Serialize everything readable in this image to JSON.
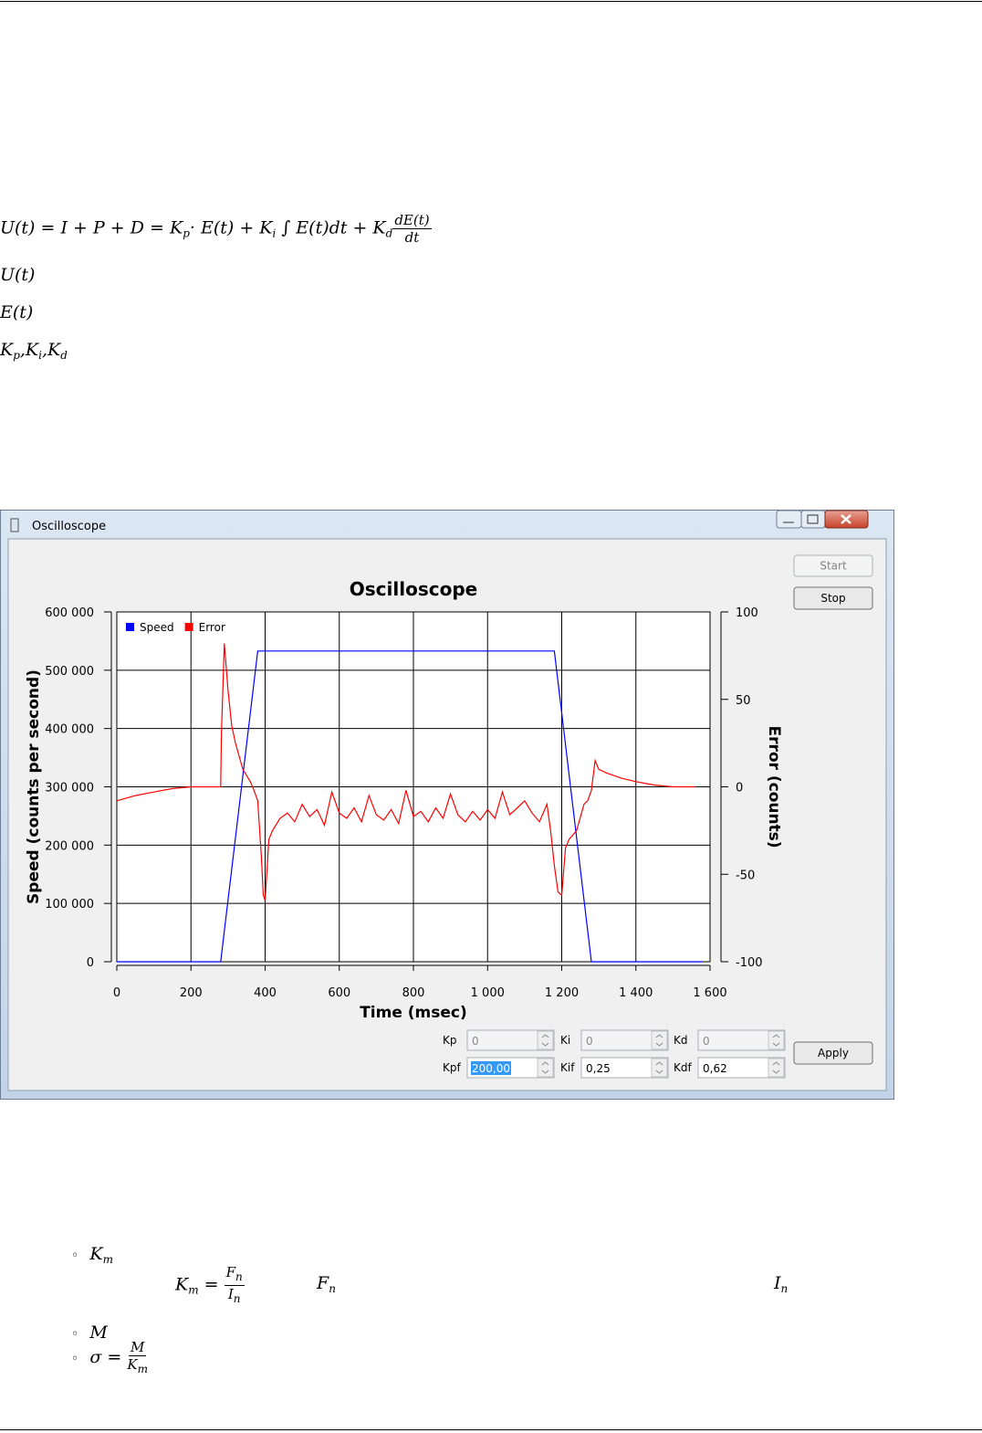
{
  "formulas": {
    "main": {
      "a": "U(t) = I + P + D = K",
      "p": "p",
      "b": "· E(t) + K",
      "i": "i",
      "c": " ∫ E(t)dt + K",
      "d": "d",
      "num": "dE(t)",
      "den": "dt"
    },
    "u": "U(t)",
    "e": "E(t)",
    "gains": [
      "K",
      "p",
      ",K",
      "i",
      ",K",
      "d"
    ]
  },
  "window": {
    "title": "Oscilloscope",
    "buttons": {
      "start": "Start",
      "stop": "Stop",
      "apply": "Apply"
    },
    "fields": [
      {
        "label": "Kp",
        "value": "0",
        "enabled": false
      },
      {
        "label": "Ki",
        "value": "0",
        "enabled": false
      },
      {
        "label": "Kd",
        "value": "0",
        "enabled": false
      },
      {
        "label": "Kpf",
        "value": "200,00",
        "enabled": true,
        "selected": true
      },
      {
        "label": "Kif",
        "value": "0,25",
        "enabled": true
      },
      {
        "label": "Kdf",
        "value": "0,62",
        "enabled": true
      }
    ]
  },
  "chart_data": {
    "type": "line",
    "title": "Oscilloscope",
    "x_label": "Time (msec)",
    "y_label": "Speed (counts per second)",
    "y2_label": "Error (counts)",
    "xlim": [
      0,
      1600
    ],
    "xticks": [
      0,
      200,
      400,
      600,
      800,
      {
        "value": 1000,
        "label": "1 000"
      },
      {
        "value": 1200,
        "label": "1 200"
      },
      {
        "value": 1400,
        "label": "1 400"
      },
      {
        "value": 1600,
        "label": "1 600"
      }
    ],
    "ylim": [
      0,
      600000
    ],
    "yticks": [
      0,
      {
        "value": 100000,
        "label": "100 000"
      },
      {
        "value": 200000,
        "label": "200 000"
      },
      {
        "value": 300000,
        "label": "300 000"
      },
      {
        "value": 400000,
        "label": "400 000"
      },
      {
        "value": 500000,
        "label": "500 000"
      },
      {
        "value": 600000,
        "label": "600 000"
      }
    ],
    "y2lim": [
      -100,
      100
    ],
    "y2ticks": [
      -100,
      -50,
      0,
      50,
      100
    ],
    "grid": true,
    "legend": "upper left",
    "series": [
      {
        "name": "Speed",
        "color": "#0000ff",
        "x": [
          0,
          280,
          380,
          1180,
          1280,
          1580
        ],
        "values": [
          0,
          0,
          533000,
          533000,
          0,
          0
        ]
      },
      {
        "name": "Error",
        "color": "#ff0000",
        "axis": "y2",
        "x": [
          0,
          50,
          100,
          150,
          200,
          280,
          282,
          290,
          300,
          310,
          320,
          340,
          360,
          370,
          380,
          390,
          395,
          400,
          410,
          420,
          440,
          460,
          480,
          500,
          520,
          540,
          560,
          580,
          600,
          620,
          640,
          660,
          680,
          700,
          720,
          740,
          760,
          780,
          800,
          820,
          840,
          860,
          880,
          900,
          920,
          940,
          960,
          980,
          1000,
          1020,
          1040,
          1060,
          1080,
          1100,
          1120,
          1140,
          1160,
          1170,
          1180,
          1190,
          1200,
          1210,
          1220,
          1240,
          1260,
          1270,
          1280,
          1290,
          1300,
          1320,
          1360,
          1400,
          1450,
          1500,
          1550,
          1560
        ],
        "values": [
          -8,
          -5,
          -3,
          -1,
          0,
          0,
          30,
          82,
          55,
          35,
          25,
          10,
          3,
          -2,
          -8,
          -40,
          -62,
          -65,
          -30,
          -25,
          -18,
          -15,
          -20,
          -10,
          -17,
          -13,
          -22,
          -3,
          -15,
          -18,
          -12,
          -20,
          -5,
          -16,
          -19,
          -13,
          -21,
          -2,
          -17,
          -14,
          -20,
          -12,
          -18,
          -4,
          -16,
          -20,
          -14,
          -19,
          -13,
          -18,
          -3,
          -16,
          -12,
          -8,
          -15,
          -20,
          -10,
          -25,
          -45,
          -60,
          -62,
          -35,
          -30,
          -25,
          -10,
          -8,
          -2,
          15,
          10,
          8,
          5,
          3,
          1,
          0,
          0,
          0
        ]
      }
    ]
  },
  "notes": {
    "item1": [
      "K",
      "m"
    ],
    "def": {
      "lhs": [
        "K",
        "m",
        "="
      ],
      "num": [
        "F",
        "n"
      ],
      "den": [
        "I",
        "n"
      ]
    },
    "fn": [
      "F",
      "n"
    ],
    "in": [
      "I",
      "n"
    ],
    "item2": "M",
    "item3": {
      "lhs": "σ =",
      "num": "M",
      "den": [
        "K",
        "m"
      ]
    }
  }
}
